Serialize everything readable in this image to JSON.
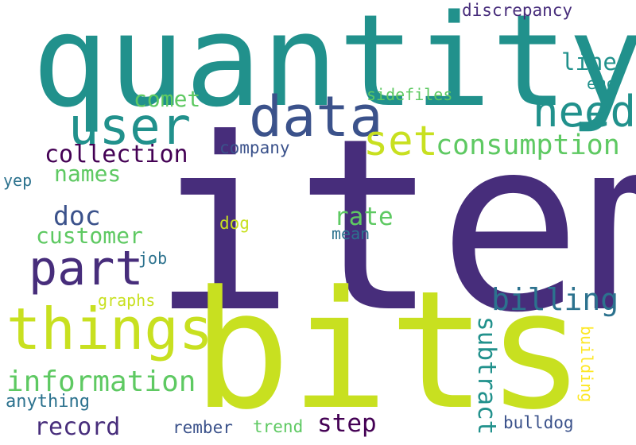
{
  "palette": {
    "purple": "#472d7b",
    "teal": "#21918c",
    "navy": "#3b528b",
    "green": "#5ec962",
    "lime": "#c8e020",
    "blue": "#2c728e",
    "yellow": "#fde725",
    "dark": "#440154"
  },
  "words": [
    {
      "text": "quantity"
    },
    {
      "text": "item"
    },
    {
      "text": "bits"
    },
    {
      "text": "data"
    },
    {
      "text": "user"
    },
    {
      "text": "need"
    },
    {
      "text": "set"
    },
    {
      "text": "things"
    },
    {
      "text": "part"
    },
    {
      "text": "consumption"
    },
    {
      "text": "collection"
    },
    {
      "text": "line"
    },
    {
      "text": "comet"
    },
    {
      "text": "discrepancy"
    },
    {
      "text": "sidefiles"
    },
    {
      "text": "emc"
    },
    {
      "text": "company"
    },
    {
      "text": "names"
    },
    {
      "text": "yep"
    },
    {
      "text": "doc"
    },
    {
      "text": "customer"
    },
    {
      "text": "rate"
    },
    {
      "text": "dog"
    },
    {
      "text": "mean"
    },
    {
      "text": "job"
    },
    {
      "text": "billing"
    },
    {
      "text": "graphs"
    },
    {
      "text": "information"
    },
    {
      "text": "subtract"
    },
    {
      "text": "building"
    },
    {
      "text": "anything"
    },
    {
      "text": "record"
    },
    {
      "text": "step"
    },
    {
      "text": "rember"
    },
    {
      "text": "trend"
    },
    {
      "text": "bulldog"
    }
  ]
}
